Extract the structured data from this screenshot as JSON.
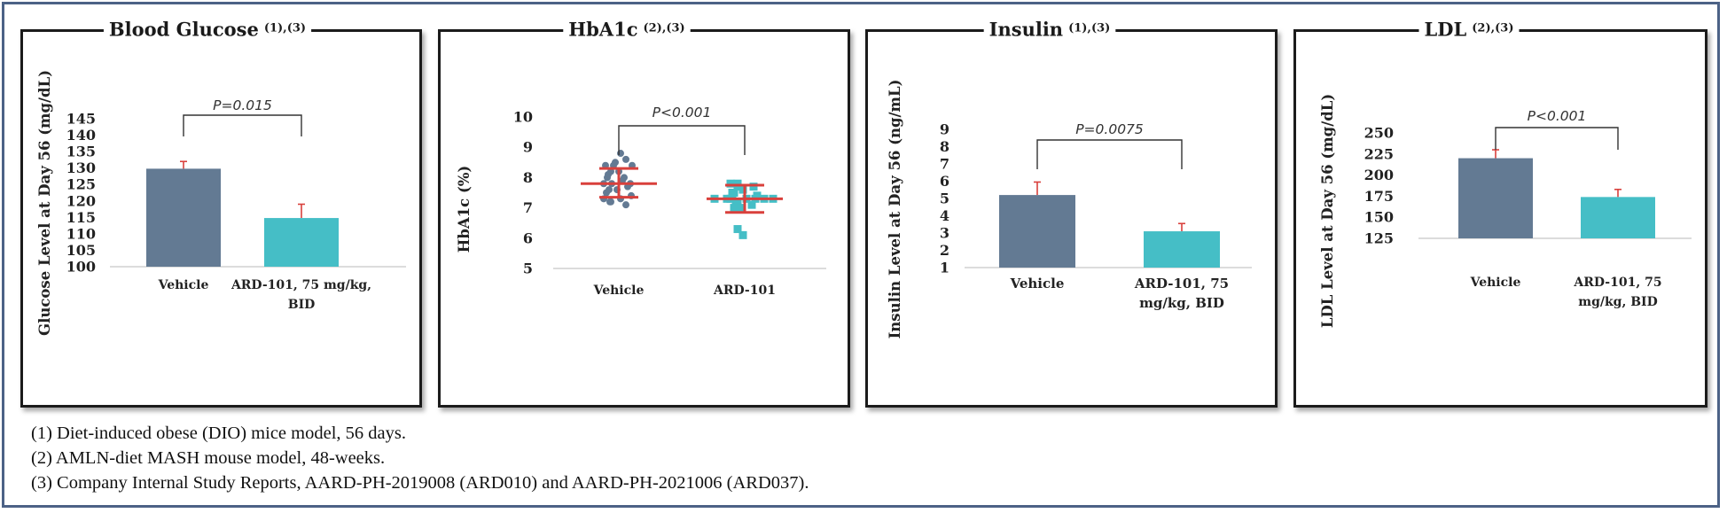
{
  "chart_data": [
    {
      "type": "bar",
      "title": "Blood Glucose",
      "title_sup": "(1),(3)",
      "ylabel": "Glucose Level at Day 56 (mg/dL)",
      "ylim": [
        100,
        145
      ],
      "yticks": [
        100,
        105,
        110,
        115,
        120,
        125,
        130,
        135,
        140,
        145
      ],
      "categories": [
        "Vehicle",
        "ARD-101, 75 mg/kg, BID"
      ],
      "category_lines": [
        [
          "Vehicle"
        ],
        [
          "ARD-101, 75 mg/kg,",
          "BID"
        ]
      ],
      "values": [
        129.8,
        114.8
      ],
      "errors": [
        2.2,
        4.2
      ],
      "colors": [
        "#637a93",
        "#45bec6"
      ],
      "annotation": "P=0.015"
    },
    {
      "type": "scatter",
      "title": "HbA1c",
      "title_sup": "(2),(3)",
      "ylabel": "HbA1c (%)",
      "ylim": [
        5,
        10
      ],
      "yticks": [
        5,
        6,
        7,
        8,
        9,
        10
      ],
      "categories": [
        "Vehicle",
        "ARD-101"
      ],
      "category_lines": [
        [
          "Vehicle"
        ],
        [
          "ARD-101"
        ]
      ],
      "series": [
        {
          "values": [
            8.8,
            8.6,
            8.5,
            8.4,
            8.4,
            8.4,
            8.2,
            8.2,
            8.1,
            8.0,
            8.0,
            7.9,
            7.8,
            7.8,
            7.8,
            7.7,
            7.6,
            7.6,
            7.5,
            7.4,
            7.3,
            7.3,
            7.2,
            7.2,
            7.1
          ],
          "mean": 7.8,
          "sd_low": 7.35,
          "sd_high": 8.3,
          "color": "#637a93",
          "marker": "circle"
        },
        {
          "values": [
            7.8,
            7.8,
            7.7,
            7.7,
            7.6,
            7.5,
            7.5,
            7.4,
            7.4,
            7.4,
            7.3,
            7.3,
            7.3,
            7.3,
            7.3,
            7.3,
            7.3,
            7.2,
            7.2,
            7.1,
            7.0,
            7.0,
            6.3,
            6.1
          ],
          "mean": 7.3,
          "sd_low": 6.85,
          "sd_high": 7.75,
          "color": "#45bec6",
          "marker": "square"
        }
      ],
      "mean_bar_color": "#d9403c",
      "annotation": "P<0.001"
    },
    {
      "type": "bar",
      "title": "Insulin",
      "title_sup": "(1),(3)",
      "ylabel": "Insulin Level at Day 56 (ng/mL)",
      "ylim": [
        0,
        9
      ],
      "yticks": [
        1,
        2,
        3,
        4,
        5,
        6,
        7,
        8,
        9
      ],
      "categories": [
        "Vehicle",
        "ARD-101, 75 mg/kg, BID"
      ],
      "category_lines": [
        [
          "Vehicle"
        ],
        [
          "ARD-101, 75",
          "mg/kg, BID"
        ]
      ],
      "values": [
        5.2,
        3.1
      ],
      "errors": [
        0.75,
        0.45
      ],
      "colors": [
        "#637a93",
        "#45bec6"
      ],
      "annotation": "P=0.0075"
    },
    {
      "type": "bar",
      "title": "LDL",
      "title_sup": "(2),(3)",
      "ylabel": "LDL Level at Day 56 (mg/dL)",
      "ylim": [
        125,
        250
      ],
      "yticks": [
        125,
        150,
        175,
        200,
        225,
        250
      ],
      "categories": [
        "Vehicle",
        "ARD-101, 75 mg/kg, BID"
      ],
      "category_lines": [
        [
          "Vehicle"
        ],
        [
          "ARD-101, 75",
          "mg/kg, BID"
        ]
      ],
      "values": [
        220,
        174
      ],
      "errors": [
        10,
        9
      ],
      "colors": [
        "#637a93",
        "#45bec6"
      ],
      "annotation": "P<0.001"
    }
  ],
  "footnotes": [
    "(1) Diet-induced obese (DIO) mice model, 56 days.",
    "(2) AMLN-diet MASH mouse model, 48-weeks.",
    "(3) Company Internal Study Reports, AARD-PH-2019008 (ARD010) and AARD-PH-2021006 (ARD037)."
  ],
  "colors": {
    "frame": "#4c6286",
    "error_bar": "#d9403c",
    "axis": "#cfcfcf"
  }
}
